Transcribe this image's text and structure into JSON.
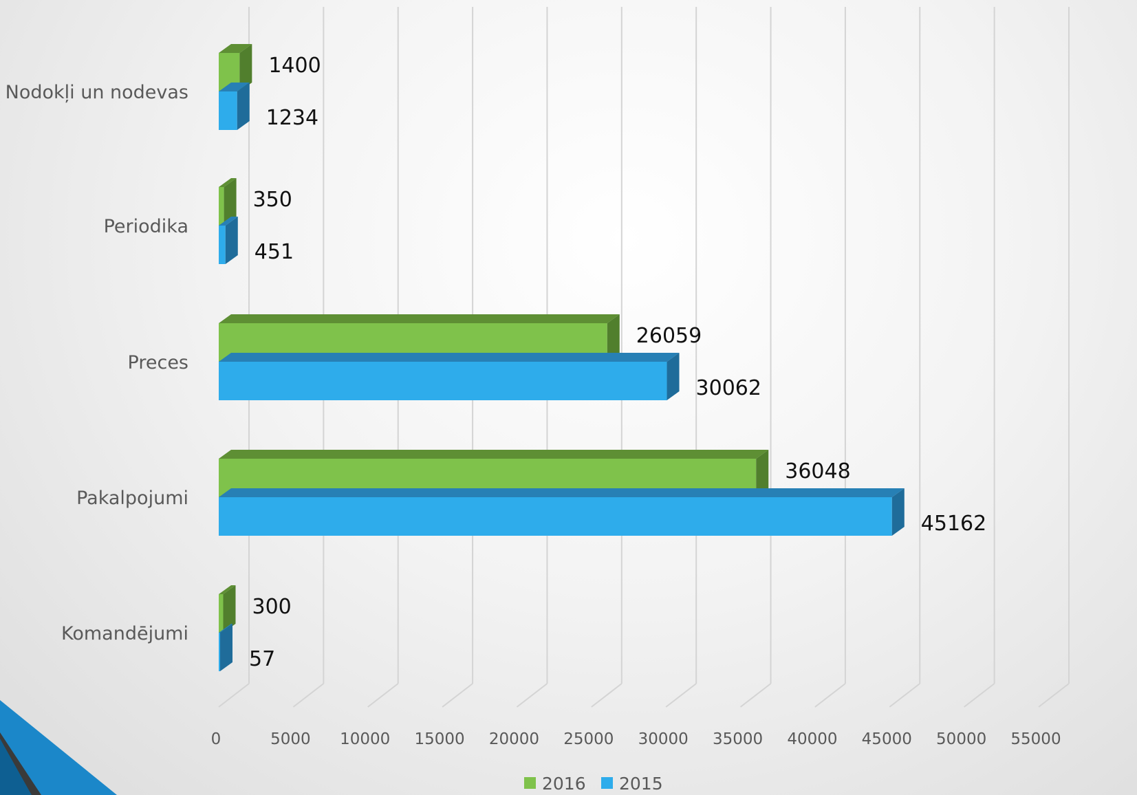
{
  "chart_data": {
    "type": "bar",
    "orientation": "horizontal",
    "style": "3d",
    "categories": [
      "Nodokļi un nodevas",
      "Periodika",
      "Preces",
      "Pakalpojumi",
      "Komandējumi"
    ],
    "series": [
      {
        "name": "2016",
        "values": [
          1400,
          350,
          26059,
          36048,
          300
        ],
        "color": "#7fc24b",
        "top_color": "#5e8f34",
        "side_color": "#517f2d"
      },
      {
        "name": "2015",
        "values": [
          1234,
          451,
          30062,
          45162,
          57
        ],
        "color": "#2eaceb",
        "top_color": "#2780b5",
        "side_color": "#1f6c9a"
      }
    ],
    "data_labels": [
      [
        "1400",
        "350",
        "26059",
        "36048",
        "300"
      ],
      [
        "1234",
        "451",
        "30062",
        "45162",
        "57"
      ]
    ],
    "x_ticks": [
      "0",
      "5000",
      "10000",
      "15000",
      "20000",
      "25000",
      "30000",
      "35000",
      "40000",
      "45000",
      "50000",
      "55000"
    ],
    "xlim": [
      0,
      55000
    ],
    "grid": true,
    "legend_position": "bottom",
    "title": "",
    "xlabel": "",
    "ylabel": ""
  },
  "decoration": {
    "corner_colors": [
      "#1b87c9",
      "#0e5f92",
      "#3a3a3a"
    ]
  }
}
